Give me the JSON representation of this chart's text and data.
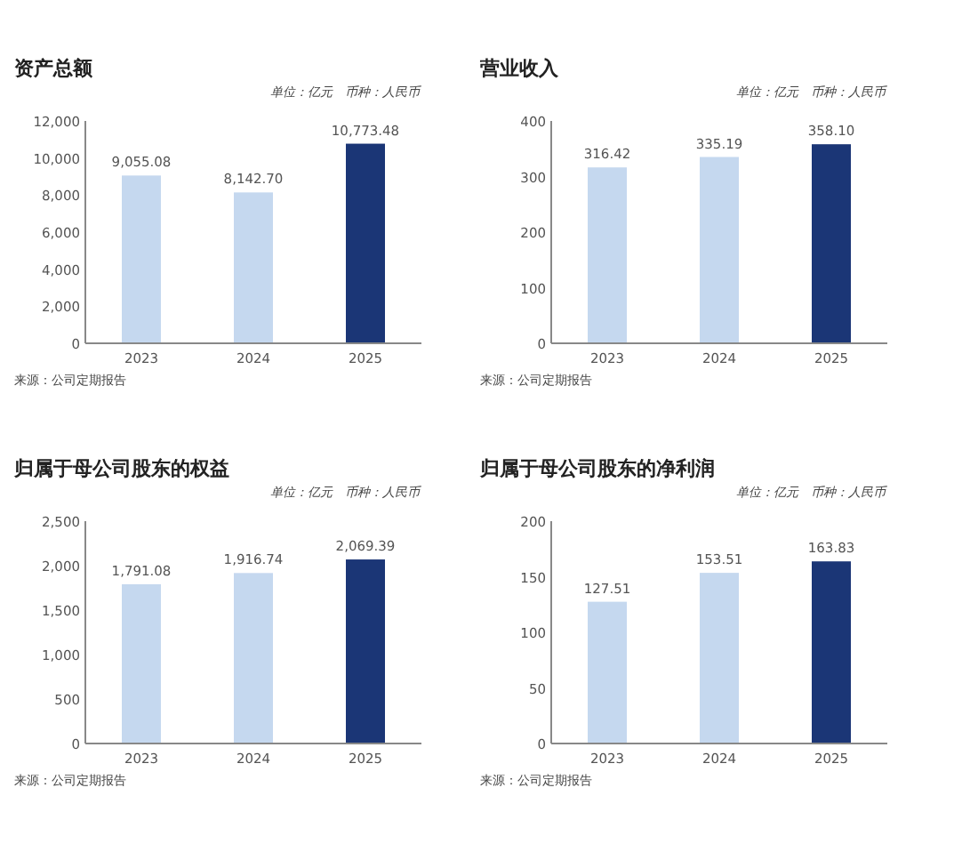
{
  "chart_data": [
    {
      "type": "bar",
      "title": "资产总额",
      "subtitle": "单位：亿元　币种：人民币",
      "categories": [
        "2023",
        "2024",
        "2025"
      ],
      "values": [
        9055.08,
        8142.7,
        10773.48
      ],
      "colors": [
        "#c5d8ef",
        "#c5d8ef",
        "#1b3676"
      ],
      "ylim": [
        0,
        12000
      ],
      "yticks": [
        {
          "value": 0,
          "label": "0"
        },
        {
          "value": 2000,
          "label": "2,000"
        },
        {
          "value": 4000,
          "label": "4,000"
        },
        {
          "value": 6000,
          "label": "6,000"
        },
        {
          "value": 8000,
          "label": "8,000"
        },
        {
          "value": 10000,
          "label": "10,000"
        },
        {
          "value": 12000,
          "label": "12,000"
        }
      ],
      "data_labels": true,
      "value_labels": [
        "9,055.08",
        "8,142.70",
        "10,773.48"
      ],
      "annotations": [
        "来源：公司定期报告"
      ]
    },
    {
      "type": "bar",
      "title": "营业收入",
      "subtitle": "单位：亿元　币种：人民币",
      "categories": [
        "2023",
        "2024",
        "2025"
      ],
      "values": [
        316.42,
        335.19,
        358.1
      ],
      "colors": [
        "#c5d8ef",
        "#c5d8ef",
        "#1b3676"
      ],
      "ylim": [
        0,
        400
      ],
      "yticks": [
        0,
        100,
        200,
        300,
        400
      ],
      "data_labels": true,
      "value_labels": [
        "316.42",
        "335.19",
        "358.10"
      ],
      "annotations": [
        "来源：公司定期报告"
      ]
    },
    {
      "type": "bar",
      "title": "归属于母公司股东的权益",
      "subtitle": "单位：亿元　币种：人民币",
      "categories": [
        "2023",
        "2024",
        "2025"
      ],
      "values": [
        1791.08,
        1916.74,
        2069.39
      ],
      "colors": [
        "#c5d8ef",
        "#c5d8ef",
        "#1b3676"
      ],
      "ylim": [
        0,
        2500
      ],
      "yticks": [
        {
          "value": 0,
          "label": "0"
        },
        {
          "value": 500,
          "label": "500"
        },
        {
          "value": 1000,
          "label": "1,000"
        },
        {
          "value": 1500,
          "label": "1,500"
        },
        {
          "value": 2000,
          "label": "2,000"
        },
        {
          "value": 2500,
          "label": "2,500"
        }
      ],
      "data_labels": true,
      "value_labels": [
        "1,791.08",
        "1,916.74",
        "2,069.39"
      ],
      "annotations": [
        "来源：公司定期报告"
      ]
    },
    {
      "type": "bar",
      "title": "归属于母公司股东的净利润",
      "subtitle": "单位：亿元　币种：人民币",
      "categories": [
        "2023",
        "2024",
        "2025"
      ],
      "values": [
        127.51,
        153.51,
        163.83
      ],
      "colors": [
        "#c5d8ef",
        "#c5d8ef",
        "#1b3676"
      ],
      "ylim": [
        0,
        200
      ],
      "yticks": [
        0,
        50,
        100,
        150,
        200
      ],
      "data_labels": true,
      "value_labels": [
        "127.51",
        "153.51",
        "163.83"
      ],
      "annotations": [
        "来源：公司定期报告"
      ]
    }
  ]
}
